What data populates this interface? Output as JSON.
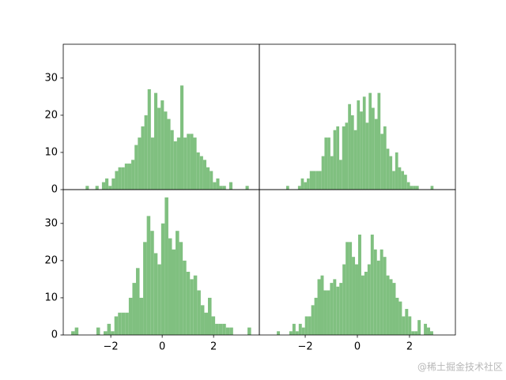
{
  "chart_data": [
    {
      "type": "histogram",
      "color": "#80c080",
      "bins": [
        -2.98,
        -2.853,
        -2.726,
        -2.599,
        -2.472,
        -2.345,
        -2.218,
        -2.091,
        -1.964,
        -1.837,
        -1.71,
        -1.583,
        -1.456,
        -1.329,
        -1.202,
        -1.075,
        -0.948,
        -0.821,
        -0.694,
        -0.567,
        -0.44,
        -0.313,
        -0.186,
        -0.059,
        0.068,
        0.195,
        0.322,
        0.449,
        0.576,
        0.703,
        0.83,
        0.957,
        1.084,
        1.211,
        1.338,
        1.465,
        1.592,
        1.719,
        1.846,
        1.973,
        2.1,
        2.227,
        2.354,
        2.481,
        2.608,
        2.735,
        2.862,
        2.989,
        3.116,
        3.243,
        3.37
      ],
      "values": [
        1,
        0,
        0,
        1,
        0,
        2,
        3,
        1,
        3,
        5,
        6,
        6,
        7,
        7,
        8,
        12,
        14,
        17,
        20,
        27,
        14,
        26,
        22,
        24,
        21,
        19,
        16,
        13,
        14,
        28,
        14,
        15,
        15,
        14,
        10,
        9,
        8,
        6,
        5,
        2,
        3,
        1,
        1,
        0,
        2,
        0,
        0,
        0,
        0,
        1
      ],
      "xlim": [
        -3.85,
        3.78
      ],
      "ylim": [
        0,
        39.1
      ],
      "yticks": [
        0,
        10,
        20,
        30
      ]
    },
    {
      "type": "histogram",
      "color": "#80c080",
      "bins": [
        -2.73,
        -2.617,
        -2.504,
        -2.391,
        -2.278,
        -2.165,
        -2.052,
        -1.939,
        -1.826,
        -1.713,
        -1.6,
        -1.487,
        -1.374,
        -1.261,
        -1.148,
        -1.035,
        -0.922,
        -0.809,
        -0.696,
        -0.583,
        -0.47,
        -0.357,
        -0.244,
        -0.131,
        -0.018,
        0.095,
        0.208,
        0.321,
        0.434,
        0.547,
        0.66,
        0.773,
        0.886,
        0.999,
        1.112,
        1.225,
        1.338,
        1.451,
        1.564,
        1.677,
        1.79,
        1.903,
        2.016,
        2.129,
        2.242,
        2.355,
        2.468,
        2.581,
        2.694,
        2.807,
        2.92
      ],
      "values": [
        1,
        0,
        0,
        0,
        1,
        3,
        2,
        3,
        5,
        5,
        5,
        5,
        9,
        14,
        14,
        9,
        16,
        17,
        8,
        17,
        18,
        23,
        20,
        16,
        24,
        21,
        25,
        18,
        26,
        22,
        19,
        26,
        15,
        17,
        11,
        9,
        5,
        10,
        6,
        5,
        4,
        2,
        1,
        1,
        1,
        0,
        0,
        0,
        0,
        1
      ],
      "xlim": [
        -3.76,
        3.76
      ],
      "ylim": [
        0,
        39.1
      ]
    },
    {
      "type": "histogram",
      "color": "#80c080",
      "bins": [
        -3.54,
        -3.4,
        -3.26,
        -3.12,
        -2.98,
        -2.84,
        -2.7,
        -2.56,
        -2.42,
        -2.28,
        -2.14,
        -2.0,
        -1.86,
        -1.72,
        -1.58,
        -1.44,
        -1.3,
        -1.16,
        -1.02,
        -0.88,
        -0.74,
        -0.6,
        -0.46,
        -0.32,
        -0.18,
        -0.04,
        0.1,
        0.24,
        0.38,
        0.52,
        0.66,
        0.8,
        0.94,
        1.08,
        1.22,
        1.36,
        1.5,
        1.64,
        1.78,
        1.92,
        2.06,
        2.2,
        2.34,
        2.48,
        2.62,
        2.76,
        2.9,
        3.04,
        3.18,
        3.32,
        3.46
      ],
      "values": [
        1,
        2,
        0,
        0,
        0,
        0,
        0,
        2,
        0,
        1,
        3,
        1,
        5,
        6,
        6,
        6,
        10,
        14,
        18,
        10,
        25,
        32,
        28,
        22,
        19,
        30,
        37,
        26,
        23,
        28,
        25,
        20,
        17,
        15,
        16,
        12,
        8,
        6,
        10,
        5,
        3,
        3,
        3,
        2,
        2,
        0,
        0,
        0,
        0,
        2
      ],
      "xlim": [
        -3.85,
        3.78
      ],
      "ylim": [
        0,
        39.1
      ],
      "yticks": [
        0,
        10,
        20,
        30
      ],
      "xticks": [
        {
          "value": -2,
          "label": "−2"
        },
        0,
        2
      ]
    },
    {
      "type": "histogram",
      "color": "#80c080",
      "bins": [
        -3.09,
        -2.97,
        -2.85,
        -2.73,
        -2.61,
        -2.49,
        -2.37,
        -2.25,
        -2.13,
        -2.01,
        -1.89,
        -1.77,
        -1.65,
        -1.53,
        -1.41,
        -1.29,
        -1.17,
        -1.05,
        -0.93,
        -0.81,
        -0.69,
        -0.57,
        -0.45,
        -0.33,
        -0.21,
        -0.09,
        0.03,
        0.15,
        0.27,
        0.39,
        0.51,
        0.63,
        0.75,
        0.87,
        0.99,
        1.11,
        1.23,
        1.35,
        1.47,
        1.59,
        1.71,
        1.83,
        1.95,
        2.07,
        2.19,
        2.31,
        2.43,
        2.55,
        2.67,
        2.79,
        2.91
      ],
      "values": [
        1,
        0,
        0,
        0,
        1,
        3,
        1,
        3,
        2,
        5,
        5,
        8,
        10,
        15,
        16,
        12,
        12,
        14,
        15,
        13,
        14,
        19,
        25,
        25,
        21,
        19,
        27,
        16,
        17,
        19,
        27,
        23,
        20,
        23,
        21,
        16,
        15,
        14,
        10,
        9,
        5,
        7,
        5,
        1,
        1,
        4,
        0,
        3,
        2,
        1
      ],
      "xlim": [
        -3.76,
        3.76
      ],
      "ylim": [
        0,
        39.1
      ],
      "xticks": [
        {
          "value": -2,
          "label": "−2"
        },
        0,
        2
      ]
    }
  ],
  "watermark": "@稀土掘金技术社区"
}
